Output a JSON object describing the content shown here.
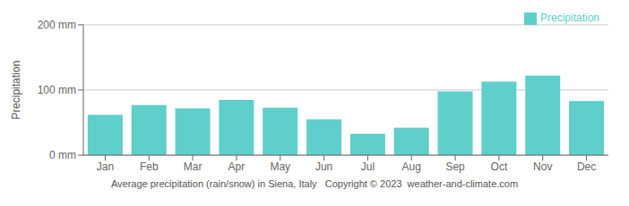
{
  "chart_data": {
    "type": "bar",
    "ylabel": "Precipitation",
    "annotations": [
      "Average precipitation (rain/snow) in Siena, Italy   Copyright © 2023  weather-and-climate.com"
    ],
    "categories": [
      "Jan",
      "Feb",
      "Mar",
      "Apr",
      "May",
      "Jun",
      "Jul",
      "Aug",
      "Sep",
      "Oct",
      "Nov",
      "Dec"
    ],
    "series": [
      {
        "name": "Precipitation",
        "color": "#5ecfcb",
        "values": [
          62,
          77,
          72,
          85,
          73,
          55,
          33,
          42,
          98,
          113,
          122,
          83
        ]
      }
    ],
    "ylim": [
      0,
      200
    ],
    "yticks": [
      {
        "value": 0,
        "label": "0 mm"
      },
      {
        "value": 100,
        "label": "100 mm"
      },
      {
        "value": 200,
        "label": "200 mm"
      }
    ],
    "grid": true,
    "legend": "upper right"
  }
}
